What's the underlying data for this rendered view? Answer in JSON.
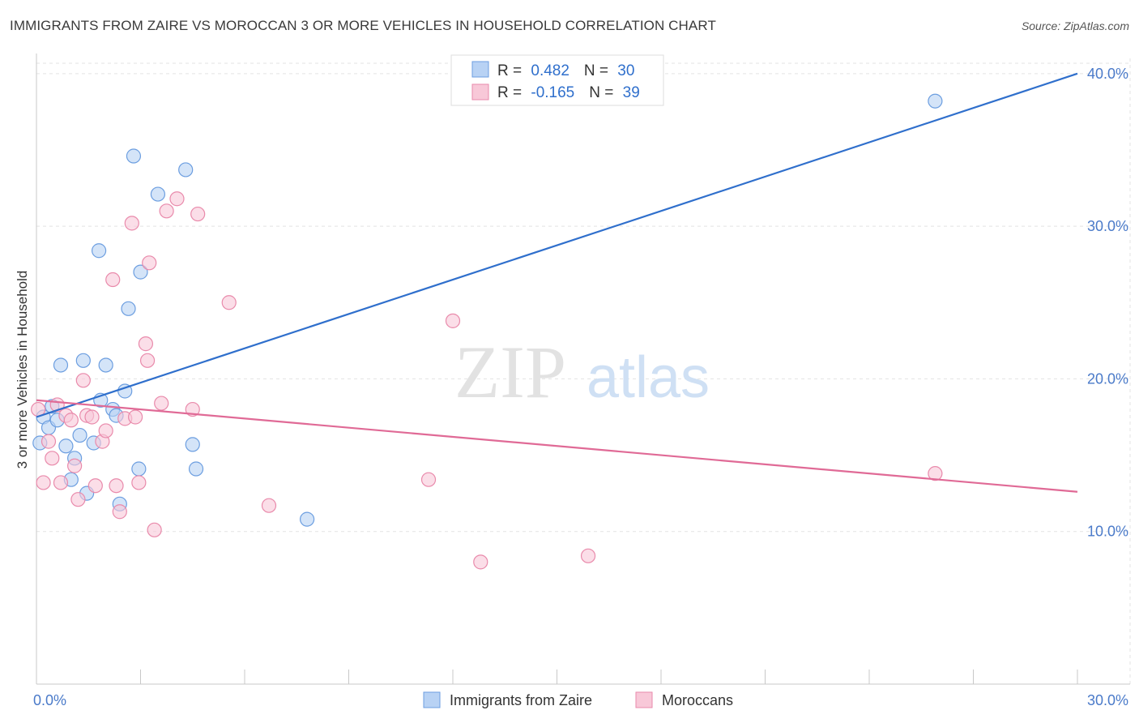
{
  "header": {
    "title": "IMMIGRANTS FROM ZAIRE VS MOROCCAN 3 OR MORE VEHICLES IN HOUSEHOLD CORRELATION CHART",
    "source": "Source: ZipAtlas.com"
  },
  "watermark": {
    "zip": "ZIP",
    "atlas": "atlas"
  },
  "legend": {
    "rows": [
      {
        "r_label": "R = ",
        "r_value": "0.482",
        "n_label": "N = ",
        "n_value": "30"
      },
      {
        "r_label": "R = ",
        "r_value": "-0.165",
        "n_label": "N = ",
        "n_value": "39"
      }
    ]
  },
  "colors": {
    "series1_fill": "#b8d2f4",
    "series1_stroke": "#6c9ee0",
    "series1_line": "#2f6fcc",
    "series2_fill": "#f8c8d8",
    "series2_stroke": "#e98aab",
    "series2_line": "#e06a96",
    "label": "#4a7ac9"
  },
  "chart_data": {
    "type": "scatter",
    "title": "IMMIGRANTS FROM ZAIRE VS MOROCCAN 3 OR MORE VEHICLES IN HOUSEHOLD CORRELATION CHART",
    "xlabel": "",
    "ylabel": "3 or more Vehicles in Household",
    "xlim": [
      0,
      30
    ],
    "ylim": [
      0,
      41
    ],
    "x_ticks": [
      0,
      30
    ],
    "x_tick_labels": [
      "0.0%",
      "30.0%"
    ],
    "y_ticks": [
      10,
      20,
      30,
      40
    ],
    "y_tick_labels": [
      "10.0%",
      "20.0%",
      "30.0%",
      "40.0%"
    ],
    "grid": true,
    "legend_position": "bottom-center",
    "series": [
      {
        "name": "Immigrants from Zaire",
        "r": 0.482,
        "n": 30,
        "trend": [
          [
            0,
            17.5
          ],
          [
            30,
            40.0
          ]
        ],
        "points": [
          [
            0.1,
            15.8
          ],
          [
            0.2,
            17.5
          ],
          [
            0.35,
            16.8
          ],
          [
            0.45,
            18.2
          ],
          [
            0.6,
            17.3
          ],
          [
            0.7,
            20.9
          ],
          [
            0.85,
            15.6
          ],
          [
            1.0,
            13.4
          ],
          [
            1.1,
            14.8
          ],
          [
            1.25,
            16.3
          ],
          [
            1.35,
            21.2
          ],
          [
            1.45,
            12.5
          ],
          [
            1.65,
            15.8
          ],
          [
            1.8,
            28.4
          ],
          [
            1.85,
            18.6
          ],
          [
            2.0,
            20.9
          ],
          [
            2.2,
            18.0
          ],
          [
            2.3,
            17.6
          ],
          [
            2.4,
            11.8
          ],
          [
            2.55,
            19.2
          ],
          [
            2.65,
            24.6
          ],
          [
            2.8,
            34.6
          ],
          [
            2.95,
            14.1
          ],
          [
            3.0,
            27.0
          ],
          [
            3.5,
            32.1
          ],
          [
            4.3,
            33.7
          ],
          [
            4.5,
            15.7
          ],
          [
            4.6,
            14.1
          ],
          [
            7.8,
            10.8
          ],
          [
            25.9,
            38.2
          ]
        ]
      },
      {
        "name": "Moroccans",
        "r": -0.165,
        "n": 39,
        "trend": [
          [
            0,
            18.6
          ],
          [
            30,
            12.6
          ]
        ],
        "points": [
          [
            0.05,
            18.0
          ],
          [
            0.2,
            13.2
          ],
          [
            0.35,
            15.9
          ],
          [
            0.45,
            14.8
          ],
          [
            0.6,
            18.3
          ],
          [
            0.7,
            13.2
          ],
          [
            0.85,
            17.6
          ],
          [
            1.0,
            17.3
          ],
          [
            1.1,
            14.3
          ],
          [
            1.2,
            12.1
          ],
          [
            1.35,
            19.9
          ],
          [
            1.45,
            17.6
          ],
          [
            1.6,
            17.5
          ],
          [
            1.7,
            13.0
          ],
          [
            1.9,
            15.9
          ],
          [
            2.0,
            16.6
          ],
          [
            2.2,
            26.5
          ],
          [
            2.3,
            13.0
          ],
          [
            2.4,
            11.3
          ],
          [
            2.55,
            17.4
          ],
          [
            2.75,
            30.2
          ],
          [
            2.85,
            17.5
          ],
          [
            2.95,
            13.2
          ],
          [
            3.15,
            22.3
          ],
          [
            3.2,
            21.2
          ],
          [
            3.25,
            27.6
          ],
          [
            3.4,
            10.1
          ],
          [
            3.6,
            18.4
          ],
          [
            3.75,
            31.0
          ],
          [
            4.05,
            31.8
          ],
          [
            4.5,
            18.0
          ],
          [
            4.65,
            30.8
          ],
          [
            5.55,
            25.0
          ],
          [
            6.7,
            11.7
          ],
          [
            11.3,
            13.4
          ],
          [
            12.0,
            23.8
          ],
          [
            12.8,
            8.0
          ],
          [
            15.9,
            8.4
          ],
          [
            25.9,
            13.8
          ]
        ]
      }
    ]
  }
}
